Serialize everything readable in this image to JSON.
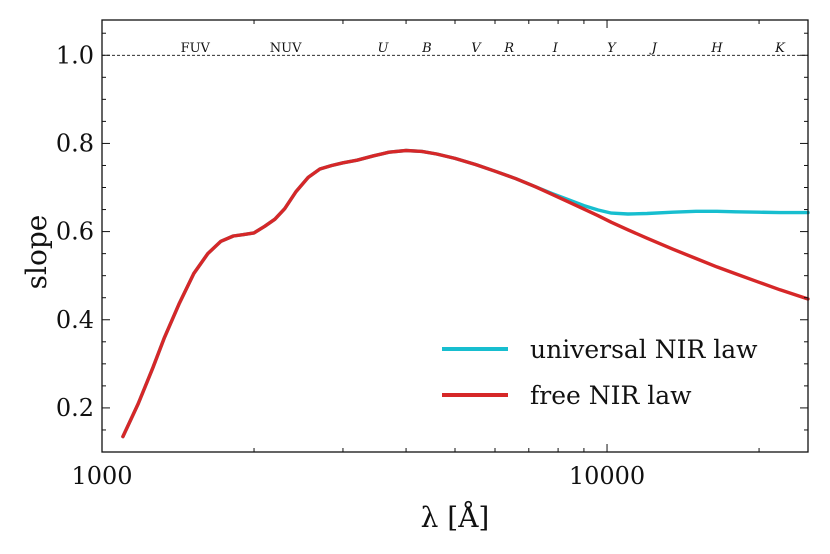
{
  "chart_data": {
    "type": "line",
    "xscale": "log",
    "xlim": [
      1000,
      25000
    ],
    "ylim": [
      0.1,
      1.08
    ],
    "xlabel": "λ [Å]",
    "ylabel": "slope",
    "x_ticks": [
      {
        "value": 1000,
        "label": "1000"
      },
      {
        "value": 10000,
        "label": "10000"
      }
    ],
    "y_ticks": [
      {
        "value": 0.2,
        "label": "0.2"
      },
      {
        "value": 0.4,
        "label": "0.4"
      },
      {
        "value": 0.6,
        "label": "0.6"
      },
      {
        "value": 0.8,
        "label": "0.8"
      },
      {
        "value": 1.0,
        "label": "1.0"
      }
    ],
    "reference_line": {
      "y": 1.0,
      "style": "dashed"
    },
    "band_labels": [
      {
        "label": "FUV",
        "x": 1530,
        "italic": false
      },
      {
        "label": "NUV",
        "x": 2310,
        "italic": false
      },
      {
        "label": "U",
        "x": 3600,
        "italic": true
      },
      {
        "label": "B",
        "x": 4400,
        "italic": true
      },
      {
        "label": "V",
        "x": 5500,
        "italic": true
      },
      {
        "label": "R",
        "x": 6400,
        "italic": true
      },
      {
        "label": "I",
        "x": 7900,
        "italic": true
      },
      {
        "label": "Y",
        "x": 10200,
        "italic": true
      },
      {
        "label": "J",
        "x": 12400,
        "italic": true
      },
      {
        "label": "H",
        "x": 16500,
        "italic": true
      },
      {
        "label": "K",
        "x": 22000,
        "italic": true
      }
    ],
    "series": [
      {
        "name": "universal NIR law",
        "color": "#17becf",
        "x": [
          1100,
          1180,
          1260,
          1330,
          1420,
          1520,
          1620,
          1720,
          1820,
          1900,
          2000,
          2100,
          2200,
          2300,
          2420,
          2560,
          2700,
          2850,
          3000,
          3200,
          3450,
          3700,
          4000,
          4300,
          4600,
          5000,
          5500,
          6000,
          6600,
          7200,
          7800,
          8400,
          9000,
          9600,
          10200,
          11000,
          12000,
          13500,
          15000,
          16500,
          18000,
          20000,
          22000,
          25000
        ],
        "y": [
          0.135,
          0.21,
          0.29,
          0.36,
          0.435,
          0.505,
          0.55,
          0.578,
          0.59,
          0.593,
          0.597,
          0.612,
          0.628,
          0.652,
          0.69,
          0.723,
          0.742,
          0.75,
          0.756,
          0.762,
          0.772,
          0.78,
          0.784,
          0.782,
          0.776,
          0.766,
          0.752,
          0.737,
          0.72,
          0.702,
          0.686,
          0.672,
          0.659,
          0.649,
          0.642,
          0.64,
          0.641,
          0.644,
          0.646,
          0.646,
          0.645,
          0.644,
          0.643,
          0.643
        ]
      },
      {
        "name": "free NIR law",
        "color": "#d62728",
        "x": [
          1100,
          1180,
          1260,
          1330,
          1420,
          1520,
          1620,
          1720,
          1820,
          1900,
          2000,
          2100,
          2200,
          2300,
          2420,
          2560,
          2700,
          2850,
          3000,
          3200,
          3450,
          3700,
          4000,
          4300,
          4600,
          5000,
          5500,
          6000,
          6600,
          7200,
          7800,
          8400,
          9000,
          9600,
          10200,
          11000,
          12000,
          13500,
          15000,
          16500,
          18000,
          20000,
          22000,
          25000
        ],
        "y": [
          0.135,
          0.21,
          0.29,
          0.36,
          0.435,
          0.505,
          0.55,
          0.578,
          0.59,
          0.593,
          0.597,
          0.612,
          0.628,
          0.652,
          0.69,
          0.723,
          0.742,
          0.75,
          0.756,
          0.762,
          0.772,
          0.78,
          0.784,
          0.782,
          0.776,
          0.766,
          0.752,
          0.737,
          0.72,
          0.702,
          0.684,
          0.667,
          0.651,
          0.636,
          0.621,
          0.604,
          0.585,
          0.56,
          0.539,
          0.52,
          0.504,
          0.485,
          0.468,
          0.447
        ]
      }
    ],
    "legend": {
      "placement": "lower-right"
    }
  }
}
